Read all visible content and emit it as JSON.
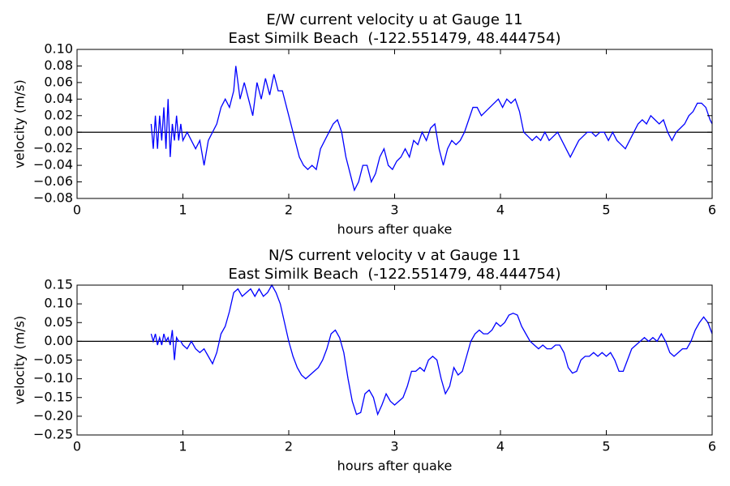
{
  "chart_data": [
    {
      "type": "line",
      "title": "E/W current velocity u at Gauge 11",
      "subtitle": "East Similk Beach  (-122.551479, 48.444754)",
      "xlabel": "hours after quake",
      "ylabel": "velocity (m/s)",
      "xlim": [
        0,
        6
      ],
      "xticks": [
        0,
        1,
        2,
        3,
        4,
        5,
        6
      ],
      "ylim": [
        -0.08,
        0.1
      ],
      "yticks": [
        {
          "value": -0.08,
          "label": "−0.08"
        },
        {
          "value": -0.06,
          "label": "−0.06"
        },
        {
          "value": -0.04,
          "label": "−0.04"
        },
        {
          "value": -0.02,
          "label": "−0.02"
        },
        {
          "value": 0,
          "label": "0.00"
        },
        {
          "value": 0.02,
          "label": "0.02"
        },
        {
          "value": 0.04,
          "label": "0.04"
        },
        {
          "value": 0.06,
          "label": "0.06"
        },
        {
          "value": 0.08,
          "label": "0.08"
        },
        {
          "value": 0.1,
          "label": "0.10"
        }
      ],
      "hline": 0,
      "series": [
        {
          "color": "#0000ff",
          "x": [
            0.7,
            0.72,
            0.74,
            0.76,
            0.78,
            0.8,
            0.82,
            0.84,
            0.86,
            0.88,
            0.9,
            0.92,
            0.94,
            0.96,
            0.98,
            1.0,
            1.04,
            1.08,
            1.12,
            1.16,
            1.2,
            1.24,
            1.28,
            1.32,
            1.36,
            1.4,
            1.44,
            1.48,
            1.5,
            1.54,
            1.58,
            1.62,
            1.66,
            1.7,
            1.74,
            1.78,
            1.82,
            1.86,
            1.9,
            1.94,
            1.98,
            2.02,
            2.06,
            2.1,
            2.14,
            2.18,
            2.22,
            2.26,
            2.3,
            2.34,
            2.38,
            2.42,
            2.46,
            2.5,
            2.54,
            2.58,
            2.62,
            2.66,
            2.7,
            2.74,
            2.78,
            2.82,
            2.86,
            2.9,
            2.94,
            2.98,
            3.02,
            3.06,
            3.1,
            3.14,
            3.18,
            3.22,
            3.26,
            3.3,
            3.34,
            3.38,
            3.42,
            3.46,
            3.5,
            3.54,
            3.58,
            3.62,
            3.66,
            3.7,
            3.74,
            3.78,
            3.82,
            3.86,
            3.9,
            3.94,
            3.98,
            4.02,
            4.06,
            4.1,
            4.14,
            4.18,
            4.22,
            4.26,
            4.3,
            4.34,
            4.38,
            4.42,
            4.46,
            4.5,
            4.54,
            4.58,
            4.62,
            4.66,
            4.7,
            4.74,
            4.78,
            4.82,
            4.86,
            4.9,
            4.94,
            4.98,
            5.02,
            5.06,
            5.1,
            5.14,
            5.18,
            5.22,
            5.26,
            5.3,
            5.34,
            5.38,
            5.42,
            5.46,
            5.5,
            5.54,
            5.58,
            5.62,
            5.66,
            5.7,
            5.74,
            5.78,
            5.82,
            5.86,
            5.9,
            5.94,
            5.98,
            6.0
          ],
          "values": [
            0.01,
            -0.02,
            0.02,
            -0.02,
            0.02,
            -0.01,
            0.03,
            -0.02,
            0.04,
            -0.03,
            0.01,
            -0.01,
            0.02,
            -0.01,
            0.01,
            -0.01,
            0.0,
            -0.01,
            -0.02,
            -0.01,
            -0.04,
            -0.01,
            0.0,
            0.01,
            0.03,
            0.04,
            0.03,
            0.05,
            0.08,
            0.04,
            0.06,
            0.04,
            0.02,
            0.06,
            0.04,
            0.065,
            0.045,
            0.07,
            0.05,
            0.05,
            0.03,
            0.01,
            -0.01,
            -0.03,
            -0.04,
            -0.045,
            -0.04,
            -0.045,
            -0.02,
            -0.01,
            0.0,
            0.01,
            0.015,
            0.0,
            -0.03,
            -0.05,
            -0.07,
            -0.06,
            -0.04,
            -0.04,
            -0.06,
            -0.05,
            -0.03,
            -0.02,
            -0.04,
            -0.045,
            -0.035,
            -0.03,
            -0.02,
            -0.03,
            -0.01,
            -0.015,
            0.0,
            -0.01,
            0.005,
            0.01,
            -0.02,
            -0.04,
            -0.02,
            -0.01,
            -0.015,
            -0.01,
            0.0,
            0.015,
            0.03,
            0.03,
            0.02,
            0.025,
            0.03,
            0.035,
            0.04,
            0.03,
            0.04,
            0.035,
            0.04,
            0.025,
            0.0,
            -0.005,
            -0.01,
            -0.005,
            -0.01,
            0.0,
            -0.01,
            -0.005,
            0.0,
            -0.01,
            -0.02,
            -0.03,
            -0.02,
            -0.01,
            -0.005,
            0.0,
            0.0,
            -0.005,
            0.0,
            0.0,
            -0.01,
            0.0,
            -0.01,
            -0.015,
            -0.02,
            -0.01,
            0.0,
            0.01,
            0.015,
            0.01,
            0.02,
            0.015,
            0.01,
            0.015,
            0.0,
            -0.01,
            0.0,
            0.005,
            0.01,
            0.02,
            0.025,
            0.035,
            0.035,
            0.03,
            0.015,
            0.01
          ]
        }
      ]
    },
    {
      "type": "line",
      "title": "N/S current velocity v at Gauge 11",
      "subtitle": "East Similk Beach  (-122.551479, 48.444754)",
      "xlabel": "hours after quake",
      "ylabel": "velocity (m/s)",
      "xlim": [
        0,
        6
      ],
      "xticks": [
        0,
        1,
        2,
        3,
        4,
        5,
        6
      ],
      "ylim": [
        -0.25,
        0.15
      ],
      "yticks": [
        {
          "value": -0.25,
          "label": "−0.25"
        },
        {
          "value": -0.2,
          "label": "−0.20"
        },
        {
          "value": -0.15,
          "label": "−0.15"
        },
        {
          "value": -0.1,
          "label": "−0.10"
        },
        {
          "value": -0.05,
          "label": "−0.05"
        },
        {
          "value": 0,
          "label": "0.00"
        },
        {
          "value": 0.05,
          "label": "0.05"
        },
        {
          "value": 0.1,
          "label": "0.10"
        },
        {
          "value": 0.15,
          "label": "0.15"
        }
      ],
      "hline": 0,
      "series": [
        {
          "color": "#0000ff",
          "x": [
            0.7,
            0.72,
            0.74,
            0.76,
            0.78,
            0.8,
            0.82,
            0.84,
            0.86,
            0.88,
            0.9,
            0.92,
            0.94,
            0.96,
            0.98,
            1.0,
            1.04,
            1.08,
            1.12,
            1.16,
            1.2,
            1.24,
            1.28,
            1.32,
            1.36,
            1.4,
            1.44,
            1.48,
            1.52,
            1.56,
            1.6,
            1.64,
            1.68,
            1.72,
            1.76,
            1.8,
            1.84,
            1.88,
            1.92,
            1.96,
            2.0,
            2.04,
            2.08,
            2.12,
            2.16,
            2.2,
            2.24,
            2.28,
            2.32,
            2.36,
            2.4,
            2.44,
            2.48,
            2.52,
            2.56,
            2.6,
            2.64,
            2.68,
            2.72,
            2.76,
            2.8,
            2.84,
            2.88,
            2.92,
            2.96,
            3.0,
            3.04,
            3.08,
            3.12,
            3.16,
            3.2,
            3.24,
            3.28,
            3.32,
            3.36,
            3.4,
            3.44,
            3.48,
            3.52,
            3.56,
            3.6,
            3.64,
            3.68,
            3.72,
            3.76,
            3.8,
            3.84,
            3.88,
            3.92,
            3.96,
            4.0,
            4.04,
            4.08,
            4.12,
            4.16,
            4.2,
            4.24,
            4.28,
            4.32,
            4.36,
            4.4,
            4.44,
            4.48,
            4.52,
            4.56,
            4.6,
            4.64,
            4.68,
            4.72,
            4.76,
            4.8,
            4.84,
            4.88,
            4.92,
            4.96,
            5.0,
            5.04,
            5.08,
            5.12,
            5.16,
            5.2,
            5.24,
            5.28,
            5.32,
            5.36,
            5.4,
            5.44,
            5.48,
            5.52,
            5.56,
            5.6,
            5.64,
            5.68,
            5.72,
            5.76,
            5.8,
            5.84,
            5.88,
            5.92,
            5.96,
            6.0
          ],
          "values": [
            0.02,
            0.0,
            0.02,
            -0.01,
            0.01,
            -0.01,
            0.02,
            0.0,
            0.01,
            -0.01,
            0.03,
            -0.05,
            0.01,
            0.0,
            0.0,
            -0.01,
            -0.02,
            0.0,
            -0.02,
            -0.03,
            -0.02,
            -0.04,
            -0.06,
            -0.03,
            0.02,
            0.04,
            0.08,
            0.13,
            0.14,
            0.12,
            0.13,
            0.14,
            0.12,
            0.14,
            0.12,
            0.13,
            0.15,
            0.13,
            0.1,
            0.05,
            0.0,
            -0.04,
            -0.07,
            -0.09,
            -0.1,
            -0.09,
            -0.08,
            -0.07,
            -0.05,
            -0.02,
            0.02,
            0.03,
            0.01,
            -0.03,
            -0.1,
            -0.16,
            -0.195,
            -0.19,
            -0.14,
            -0.13,
            -0.15,
            -0.195,
            -0.17,
            -0.14,
            -0.16,
            -0.17,
            -0.16,
            -0.15,
            -0.12,
            -0.08,
            -0.08,
            -0.07,
            -0.08,
            -0.05,
            -0.04,
            -0.05,
            -0.1,
            -0.14,
            -0.12,
            -0.07,
            -0.09,
            -0.08,
            -0.04,
            0.0,
            0.02,
            0.03,
            0.02,
            0.02,
            0.03,
            0.05,
            0.04,
            0.05,
            0.07,
            0.075,
            0.07,
            0.04,
            0.02,
            0.0,
            -0.01,
            -0.02,
            -0.01,
            -0.02,
            -0.02,
            -0.01,
            -0.01,
            -0.03,
            -0.07,
            -0.085,
            -0.08,
            -0.05,
            -0.04,
            -0.04,
            -0.03,
            -0.04,
            -0.03,
            -0.04,
            -0.03,
            -0.05,
            -0.08,
            -0.08,
            -0.05,
            -0.02,
            -0.01,
            0.0,
            0.01,
            0.0,
            0.01,
            0.0,
            0.02,
            0.0,
            -0.03,
            -0.04,
            -0.03,
            -0.02,
            -0.02,
            0.0,
            0.03,
            0.05,
            0.065,
            0.05,
            0.02
          ]
        }
      ]
    }
  ]
}
